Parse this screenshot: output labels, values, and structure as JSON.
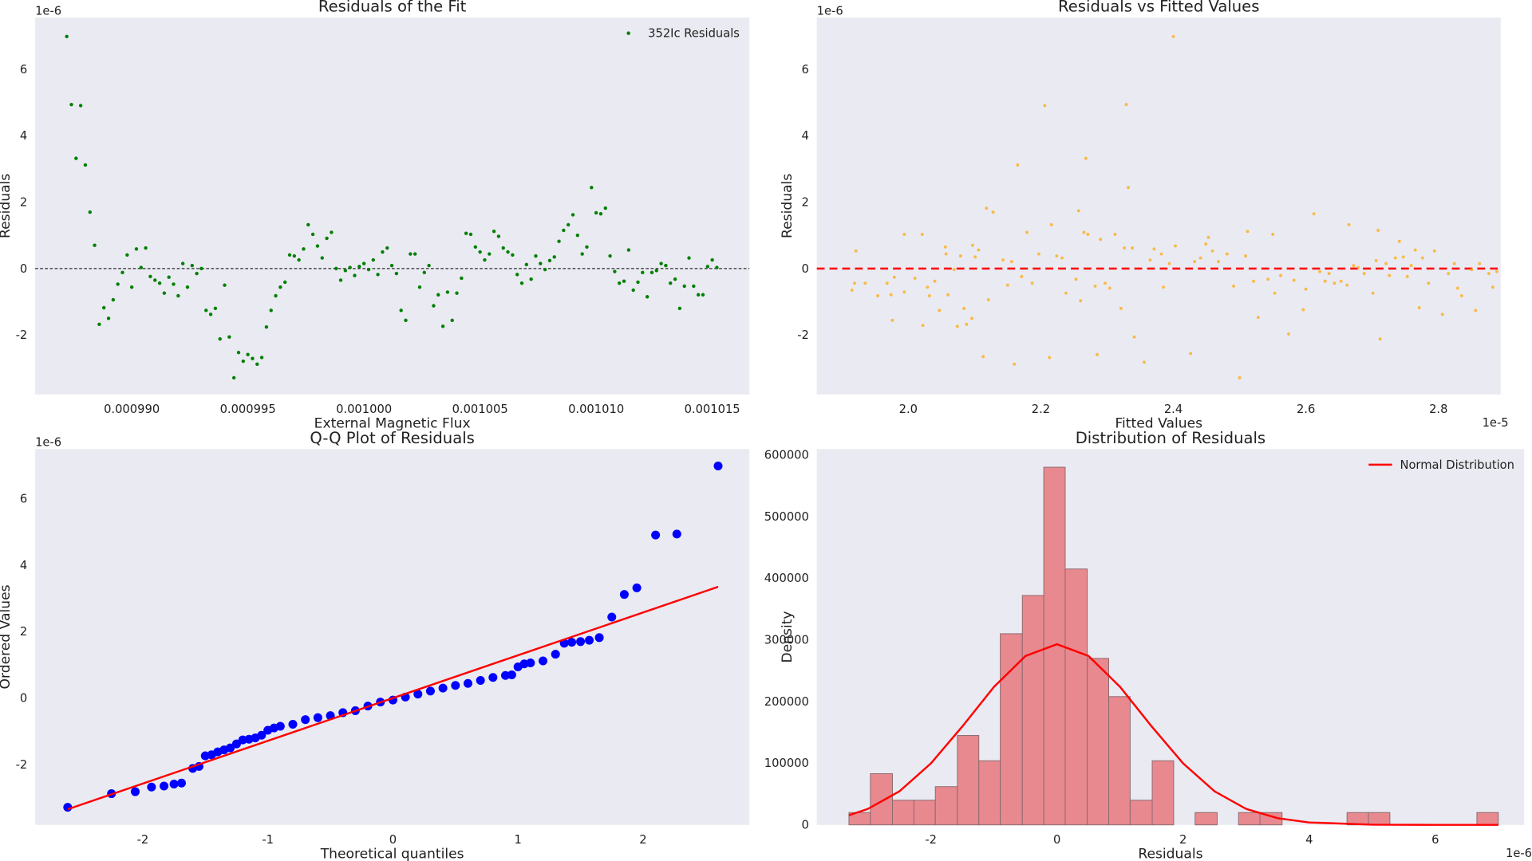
{
  "chart_data": [
    {
      "type": "scatter",
      "title": "Residuals of the Fit",
      "xlabel": "External Magnetic Flux",
      "ylabel": "Residuals",
      "y_offset": "1e-6",
      "xlim": [
        0.00098584,
        0.0010166
      ],
      "ylim": [
        -3.79,
        7.56
      ],
      "xticks": [
        {
          "value": 0.00099,
          "label": "0.000990"
        },
        0.000995,
        {
          "value": 0.001,
          "label": "0.001000"
        },
        0.001005,
        {
          "value": 0.00101,
          "label": "0.001010"
        },
        0.001015
      ],
      "yticks": [
        -2,
        0,
        2,
        4,
        6
      ],
      "grid": false,
      "legend": "upper right",
      "hline": 0,
      "hline_color": "#000000",
      "series": [
        {
          "name": "352Ic Residuals",
          "color": "#008000",
          "kind": "points",
          "x": [
            0.0009872,
            0.0009874,
            0.0009876,
            0.0009878,
            0.000988,
            0.0009882,
            0.0009884,
            0.0009886,
            0.0009888,
            0.000989,
            0.0009892,
            0.0009894,
            0.0009896,
            0.0009898,
            0.00099,
            0.0009902,
            0.0009904,
            0.0009906,
            0.0009908,
            0.000991,
            0.0009912,
            0.0009914,
            0.0009916,
            0.0009918,
            0.000992,
            0.0009922,
            0.0009924,
            0.0009926,
            0.0009928,
            0.000993,
            0.0009932,
            0.0009934,
            0.0009936,
            0.0009938,
            0.000994,
            0.0009942,
            0.0009944,
            0.0009946,
            0.0009948,
            0.000995,
            0.0009952,
            0.0009954,
            0.0009956,
            0.0009958,
            0.000996,
            0.0009962,
            0.0009964,
            0.0009966,
            0.0009968,
            0.000997,
            0.0009972,
            0.0009974,
            0.0009976,
            0.0009978,
            0.000998,
            0.0009982,
            0.0009984,
            0.0009986,
            0.0009988,
            0.000999,
            0.0009992,
            0.0009994,
            0.0009996,
            0.0009998,
            0.001,
            0.0010002,
            0.0010004,
            0.0010006,
            0.0010008,
            0.001001,
            0.0010012,
            0.0010014,
            0.0010016,
            0.0010018,
            0.001002,
            0.0010022,
            0.0010024,
            0.0010026,
            0.0010028,
            0.001003,
            0.0010032,
            0.0010034,
            0.0010036,
            0.0010038,
            0.001004,
            0.0010042,
            0.0010044,
            0.0010046,
            0.0010048,
            0.001005,
            0.0010052,
            0.0010054,
            0.0010056,
            0.0010058,
            0.001006,
            0.0010062,
            0.0010064,
            0.0010066,
            0.0010068,
            0.001007,
            0.0010072,
            0.0010074,
            0.0010076,
            0.0010078,
            0.001008,
            0.0010082,
            0.0010084,
            0.0010086,
            0.0010088,
            0.001009,
            0.0010092,
            0.0010094,
            0.0010096,
            0.0010098,
            0.00101,
            0.0010102,
            0.0010104,
            0.0010106,
            0.0010108,
            0.001011,
            0.0010112,
            0.0010114,
            0.0010116,
            0.0010118,
            0.001012,
            0.0010122,
            0.0010124,
            0.0010126,
            0.0010128,
            0.001013,
            0.0010132,
            0.0010134,
            0.0010136,
            0.0010138,
            0.001014,
            0.0010142,
            0.0010144,
            0.0010146,
            0.0010148,
            0.001015,
            0.0010152
          ],
          "values": [
            6.99,
            4.94,
            3.32,
            4.91,
            3.12,
            1.7,
            0.7,
            -1.68,
            -1.18,
            -1.5,
            -0.94,
            -0.47,
            -0.12,
            0.41,
            -0.56,
            0.59,
            0.03,
            0.62,
            -0.24,
            -0.35,
            -0.44,
            -0.74,
            -0.26,
            -0.47,
            -0.82,
            0.15,
            -0.56,
            0.09,
            -0.15,
            0,
            -1.26,
            -1.38,
            -1.2,
            -2.12,
            -0.5,
            -2.06,
            -3.29,
            -2.53,
            -2.79,
            -2.59,
            -2.71,
            -2.88,
            -2.68,
            -1.76,
            -1.26,
            -0.82,
            -0.56,
            -0.41,
            0.41,
            0.38,
            0.26,
            0.59,
            1.32,
            1.03,
            0.68,
            0.32,
            0.91,
            1.09,
            0,
            -0.35,
            -0.06,
            0.03,
            -0.21,
            0.06,
            0.15,
            -0.03,
            0.26,
            -0.18,
            0.5,
            0.62,
            0.09,
            -0.15,
            -1.26,
            -1.56,
            0.44,
            0.44,
            -0.56,
            -0.12,
            0.09,
            -1.12,
            -0.79,
            -1.74,
            -0.71,
            -1.56,
            -0.74,
            -0.29,
            1.06,
            1.03,
            0.65,
            0.5,
            0.26,
            0.44,
            1.12,
            0.97,
            0.62,
            0.5,
            0.41,
            -0.18,
            -0.44,
            0.12,
            -0.32,
            0.38,
            0.15,
            -0.03,
            0.24,
            0.35,
            0.82,
            1.15,
            1.32,
            1.62,
            1,
            0.44,
            0.65,
            2.44,
            1.68,
            1.65,
            1.82,
            0.38,
            -0.09,
            -0.44,
            -0.38,
            0.56,
            -0.65,
            -0.41,
            -0.12,
            -0.85,
            -0.12,
            -0.06,
            0.15,
            0.09,
            -0.44,
            -0.32,
            -1.2,
            -0.53,
            0.32,
            -0.53,
            -0.79,
            -0.79,
            0.06,
            0.26,
            0.03
          ]
        }
      ]
    },
    {
      "type": "scatter",
      "title": "Residuals vs Fitted Values",
      "xlabel": "Fitted Values",
      "ylabel": "Residuals",
      "y_offset": "1e-6",
      "x_offset": "1e-5",
      "xlim": [
        1.862,
        2.894
      ],
      "ylim": [
        -3.79,
        7.56
      ],
      "xticks": [
        {
          "value": 2,
          "label": "2.0"
        },
        2.2,
        2.4,
        2.6,
        2.8
      ],
      "yticks": [
        -2,
        0,
        2,
        4,
        6
      ],
      "grid": false,
      "hline": 0,
      "hline_color": "#ff0000",
      "series": [
        {
          "color": "#ffa500",
          "kind": "points",
          "x": [
            1.915,
            1.919,
            1.921,
            1.935,
            1.954,
            1.968,
            1.974,
            1.976,
            1.979,
            1.994,
            1.994,
            2.01,
            2.021,
            2.022,
            2.029,
            2.032,
            2.04,
            2.047,
            2.056,
            2.057,
            2.06,
            2.069,
            2.074,
            2.079,
            2.084,
            2.088,
            2.096,
            2.097,
            2.101,
            2.106,
            2.113,
            2.118,
            2.121,
            2.128,
            2.143,
            2.15,
            2.156,
            2.16,
            2.165,
            2.171,
            2.179,
            2.187,
            2.197,
            2.206,
            2.213,
            2.216,
            2.224,
            2.232,
            2.238,
            2.253,
            2.257,
            2.26,
            2.265,
            2.268,
            2.271,
            2.282,
            2.285,
            2.29,
            2.297,
            2.304,
            2.312,
            2.321,
            2.326,
            2.329,
            2.332,
            2.338,
            2.341,
            2.356,
            2.365,
            2.371,
            2.382,
            2.385,
            2.394,
            2.4,
            2.403,
            2.426,
            2.432,
            2.441,
            2.449,
            2.453,
            2.459,
            2.468,
            2.481,
            2.491,
            2.5,
            2.509,
            2.512,
            2.521,
            2.528,
            2.543,
            2.55,
            2.553,
            2.562,
            2.574,
            2.582,
            2.596,
            2.6,
            2.612,
            2.621,
            2.629,
            2.635,
            2.643,
            2.653,
            2.662,
            2.665,
            2.672,
            2.679,
            2.688,
            2.701,
            2.706,
            2.709,
            2.712,
            2.721,
            2.726,
            2.735,
            2.741,
            2.747,
            2.753,
            2.759,
            2.765,
            2.771,
            2.776,
            2.785,
            2.794,
            2.806,
            2.815,
            2.824,
            2.829,
            2.835,
            2.85,
            2.856,
            2.862,
            2.876,
            2.882,
            2.888
          ],
          "values": [
            -0.65,
            -0.44,
            0.53,
            -0.44,
            -0.82,
            -0.44,
            -0.79,
            -1.56,
            -0.26,
            1.03,
            -0.71,
            -0.29,
            1.03,
            -1.71,
            -0.56,
            -0.82,
            -0.38,
            -1.26,
            0.65,
            0.44,
            -0.79,
            -0.03,
            -1.74,
            0.38,
            -1.2,
            -1.68,
            -1.5,
            0.7,
            0.35,
            0.56,
            -2.65,
            1.82,
            -0.94,
            1.7,
            0.26,
            -0.5,
            0.21,
            -2.88,
            3.12,
            -0.24,
            1.09,
            -0.44,
            0.44,
            4.91,
            -2.68,
            1.32,
            0.38,
            0.32,
            -0.74,
            -0.32,
            1.74,
            -0.97,
            1.09,
            3.32,
            1.03,
            -0.53,
            -2.59,
            0.88,
            -0.44,
            -0.59,
            1.03,
            -1.2,
            0.62,
            4.94,
            2.44,
            0.62,
            -2.06,
            -2.82,
            0.26,
            0.59,
            0.44,
            -0.56,
            0.15,
            6.99,
            0.68,
            -2.56,
            0.21,
            0.32,
            0.74,
            0.94,
            0.53,
            0.21,
            0.44,
            -0.53,
            -3.29,
            0.38,
            1.12,
            -0.38,
            -1.47,
            -0.32,
            1.03,
            -0.74,
            -0.21,
            -1.97,
            -0.35,
            -1.24,
            -0.62,
            1.65,
            -0.09,
            -0.38,
            -0.15,
            -0.44,
            -0.38,
            -0.5,
            1.32,
            0.09,
            0.03,
            -0.15,
            -0.74,
            0.24,
            1.15,
            -2.12,
            0.15,
            -0.21,
            0.32,
            0.82,
            0.35,
            -0.24,
            0.09,
            0.56,
            -1.18,
            0.32,
            -0.44,
            0.53,
            -1.38,
            -0.15,
            0.15,
            -0.59,
            -0.82,
            -0.03,
            -1.26,
            0.15,
            -0.15,
            -0.56,
            -0.09
          ]
        }
      ]
    },
    {
      "type": "scatter",
      "title": "Q-Q Plot of Residuals",
      "xlabel": "Theoretical quantiles",
      "ylabel": "Ordered Values",
      "y_offset": "1e-6",
      "xlim": [
        -2.86,
        2.85
      ],
      "ylim": [
        -3.82,
        7.5
      ],
      "xticks": [
        -2,
        -1,
        0,
        1,
        2
      ],
      "yticks": [
        -2,
        0,
        2,
        4,
        6
      ],
      "grid": false,
      "series": [
        {
          "color": "#0000ff",
          "kind": "points",
          "x": [
            -2.6,
            -2.25,
            -2.06,
            -1.93,
            -1.83,
            -1.75,
            -1.69,
            -1.6,
            -1.55,
            -1.5,
            -1.45,
            -1.4,
            -1.35,
            -1.3,
            -1.25,
            -1.2,
            -1.15,
            -1.1,
            -1.05,
            -1,
            -0.95,
            -0.9,
            -0.8,
            -0.7,
            -0.6,
            -0.5,
            -0.4,
            -0.3,
            -0.2,
            -0.1,
            0,
            0.1,
            0.2,
            0.3,
            0.4,
            0.5,
            0.6,
            0.7,
            0.8,
            0.9,
            0.95,
            1,
            1.05,
            1.1,
            1.2,
            1.3,
            1.37,
            1.43,
            1.5,
            1.57,
            1.65,
            1.75,
            1.85,
            1.95,
            2.1,
            2.27,
            2.6
          ],
          "values": [
            -3.29,
            -2.88,
            -2.82,
            -2.68,
            -2.65,
            -2.59,
            -2.56,
            -2.12,
            -2.06,
            -1.74,
            -1.71,
            -1.62,
            -1.56,
            -1.5,
            -1.38,
            -1.26,
            -1.24,
            -1.2,
            -1.12,
            -0.97,
            -0.9,
            -0.85,
            -0.79,
            -0.65,
            -0.59,
            -0.53,
            -0.44,
            -0.38,
            -0.24,
            -0.12,
            -0.06,
            0.03,
            0.12,
            0.21,
            0.3,
            0.38,
            0.44,
            0.53,
            0.62,
            0.68,
            0.7,
            0.94,
            1.03,
            1.06,
            1.12,
            1.32,
            1.65,
            1.68,
            1.7,
            1.74,
            1.82,
            2.44,
            3.12,
            3.32,
            4.91,
            4.94,
            6.99
          ]
        },
        {
          "color": "#ff0000",
          "kind": "line",
          "x": [
            -2.6,
            2.6
          ],
          "values": [
            -3.35,
            3.35
          ]
        }
      ]
    },
    {
      "type": "histogram",
      "title": "Distribution of Residuals",
      "xlabel": "Residuals",
      "ylabel": "Density",
      "x_offset": "1e-6",
      "xlim": [
        -3.81,
        7.41
      ],
      "ylim": [
        0,
        609500
      ],
      "xticks": [
        -2,
        0,
        2,
        4,
        6
      ],
      "yticks": [
        0,
        100000,
        200000,
        300000,
        400000,
        500000,
        600000
      ],
      "grid": false,
      "legend": "upper right",
      "bins": [
        -3.3,
        -2.96,
        -2.61,
        -2.27,
        -1.93,
        -1.58,
        -1.24,
        -0.9,
        -0.55,
        -0.21,
        0.13,
        0.48,
        0.82,
        1.16,
        1.51,
        1.85,
        2.19,
        2.54,
        2.88,
        3.22,
        3.57,
        3.91,
        4.25,
        4.6,
        4.94,
        5.28,
        5.63,
        5.97,
        6.31,
        6.66,
        7.0
      ],
      "counts": [
        20000,
        83000,
        40000,
        40000,
        62000,
        145000,
        104000,
        310000,
        372000,
        580000,
        415000,
        270000,
        208000,
        40000,
        104000,
        0,
        20000,
        0,
        20000,
        20000,
        0,
        0,
        0,
        20000,
        20000,
        0,
        0,
        0,
        0,
        20000
      ],
      "color": "#e8898f",
      "series": [
        {
          "name": "Normal Distribution",
          "color": "#ff0000",
          "kind": "line",
          "x": [
            -3.3,
            -3,
            -2.5,
            -2,
            -1.5,
            -1,
            -0.5,
            0,
            0.5,
            1,
            1.5,
            2,
            2.5,
            3,
            3.5,
            4,
            5,
            6,
            7
          ],
          "values": [
            15600,
            25900,
            54400,
            99700,
            159800,
            223800,
            273900,
            293000,
            273900,
            223800,
            159800,
            99700,
            54400,
            25900,
            10800,
            3900,
            350,
            10,
            0
          ]
        }
      ]
    }
  ]
}
